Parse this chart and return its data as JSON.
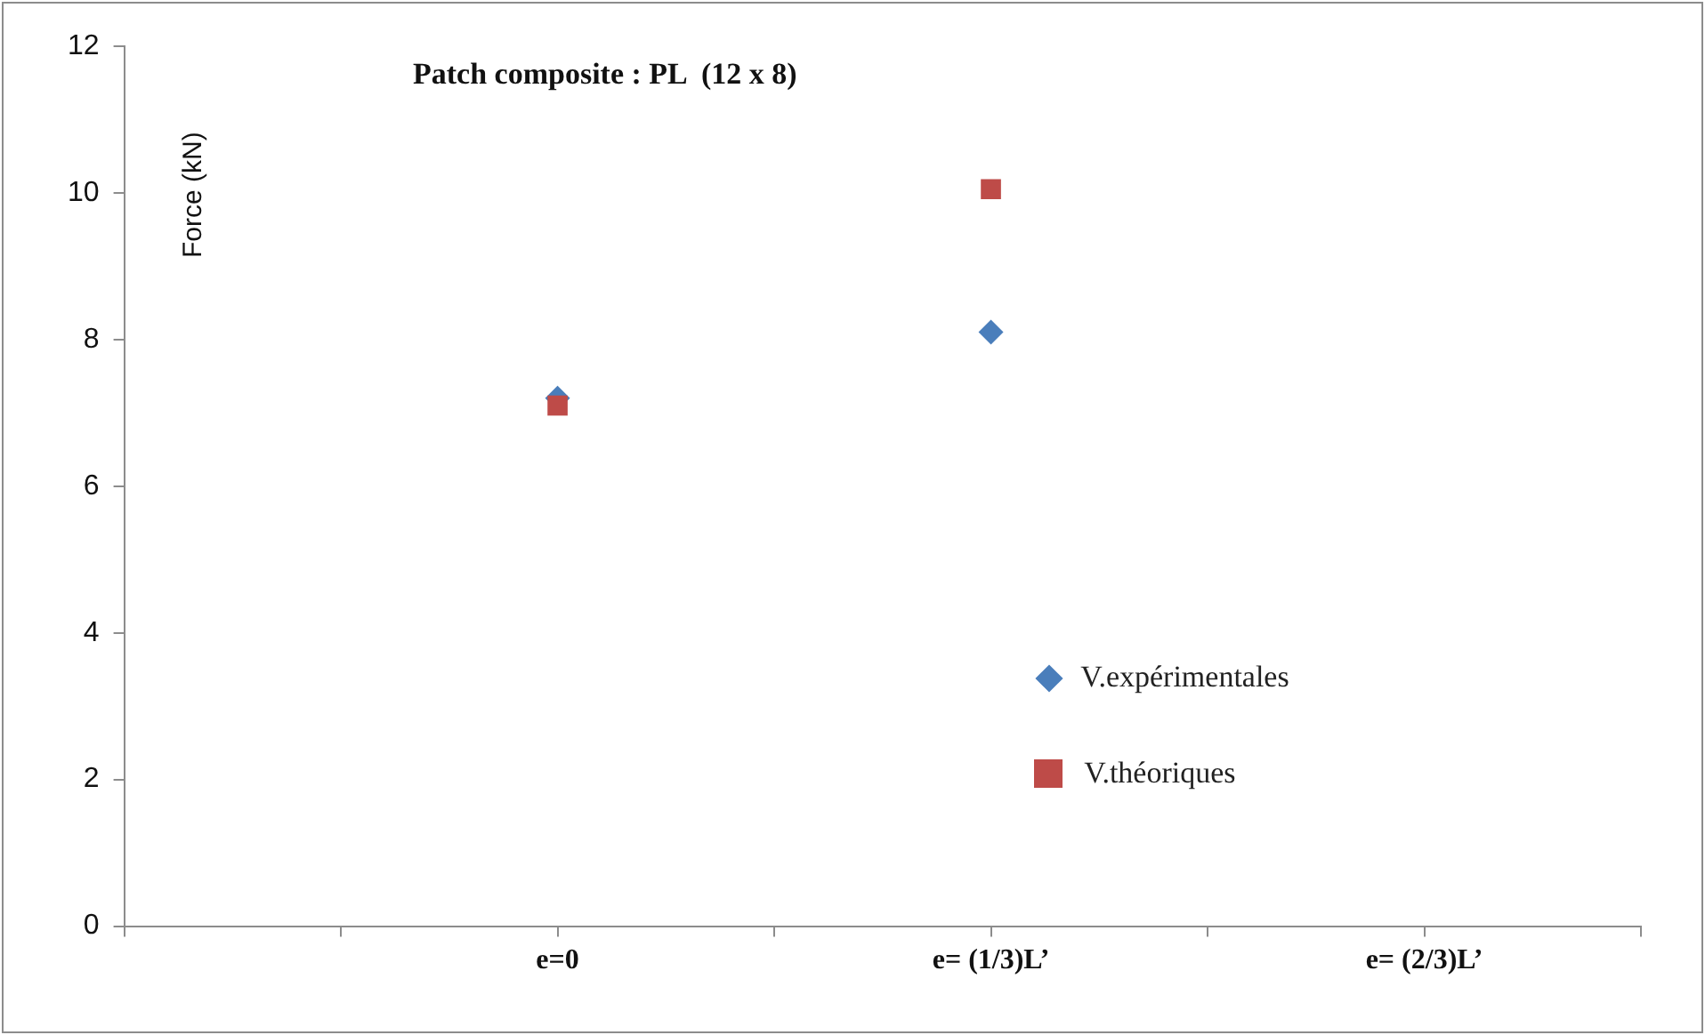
{
  "chart_data": {
    "type": "scatter",
    "title": "Patch composite : PL  (12 x 8)",
    "ylabel": "Force (kN)",
    "categories": [
      null,
      null,
      "e=0",
      null,
      "e= (1/3)L’",
      null,
      "e= (2/3)L’",
      null
    ],
    "series": [
      {
        "name": "V.expérimentales",
        "color": "#4a7ebb",
        "marker": "diamond",
        "values": [
          null,
          null,
          7.2,
          null,
          8.1,
          null,
          null,
          null
        ]
      },
      {
        "name": "V.théoriques",
        "color": "#be4b48",
        "marker": "square",
        "values": [
          null,
          null,
          7.1,
          null,
          10.05,
          null,
          null,
          null
        ]
      }
    ],
    "ylim": [
      0,
      12
    ],
    "yticks": [
      0,
      2,
      4,
      6,
      8,
      10,
      12
    ],
    "grid": false,
    "legend": "right"
  }
}
